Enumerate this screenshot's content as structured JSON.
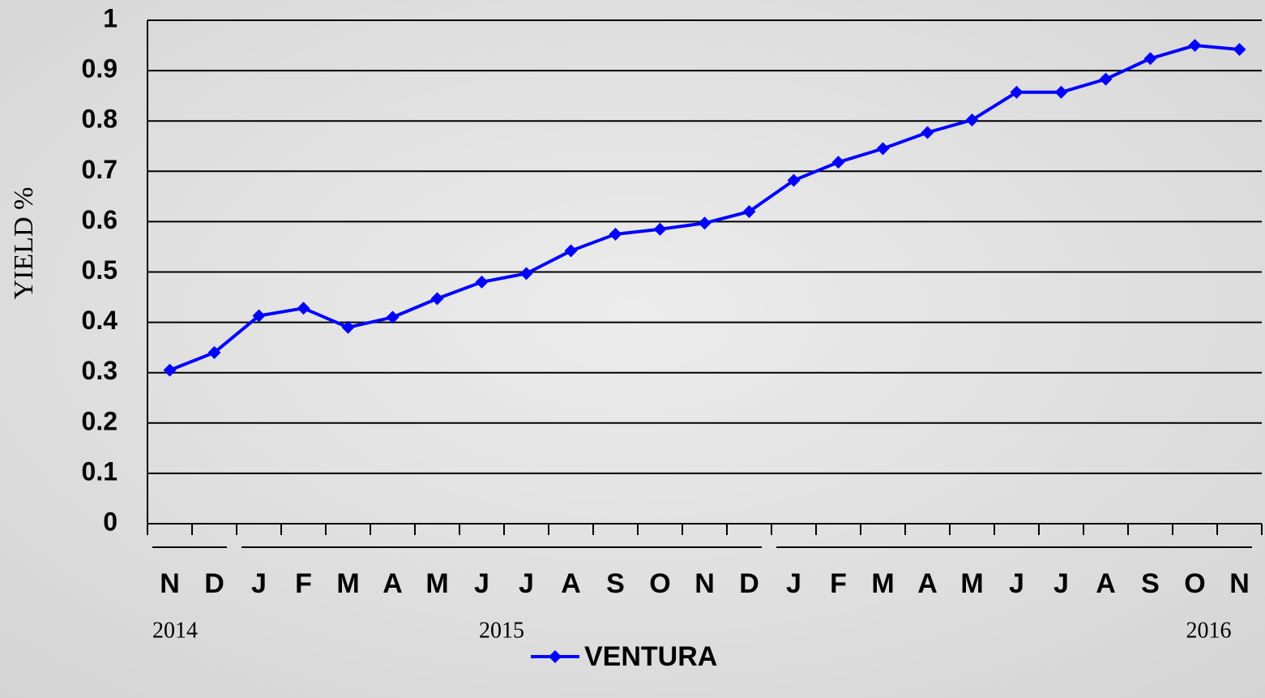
{
  "chart_data": {
    "type": "line",
    "y_label": "YIELD %",
    "categories": [
      "N",
      "D",
      "J",
      "F",
      "M",
      "A",
      "M",
      "J",
      "J",
      "A",
      "S",
      "O",
      "N",
      "D",
      "J",
      "F",
      "M",
      "A",
      "M",
      "J",
      "J",
      "A",
      "S",
      "O",
      "N"
    ],
    "year_labels": [
      "2014",
      "2015",
      "2016"
    ],
    "series": [
      {
        "name": "VENTURA",
        "color": "#0000ff",
        "values": [
          0.305,
          0.34,
          0.413,
          0.428,
          0.39,
          0.41,
          0.447,
          0.48,
          0.497,
          0.542,
          0.575,
          0.585,
          0.597,
          0.62,
          0.682,
          0.718,
          0.745,
          0.777,
          0.802,
          0.857,
          0.857,
          0.883,
          0.924,
          0.95,
          0.942
        ]
      }
    ],
    "ylim": [
      0,
      1
    ],
    "yticks": [
      0,
      0.1,
      0.2,
      0.3,
      0.4,
      0.5,
      0.6,
      0.7,
      0.8,
      0.9,
      1
    ],
    "grid": true,
    "legend": "bottom"
  }
}
